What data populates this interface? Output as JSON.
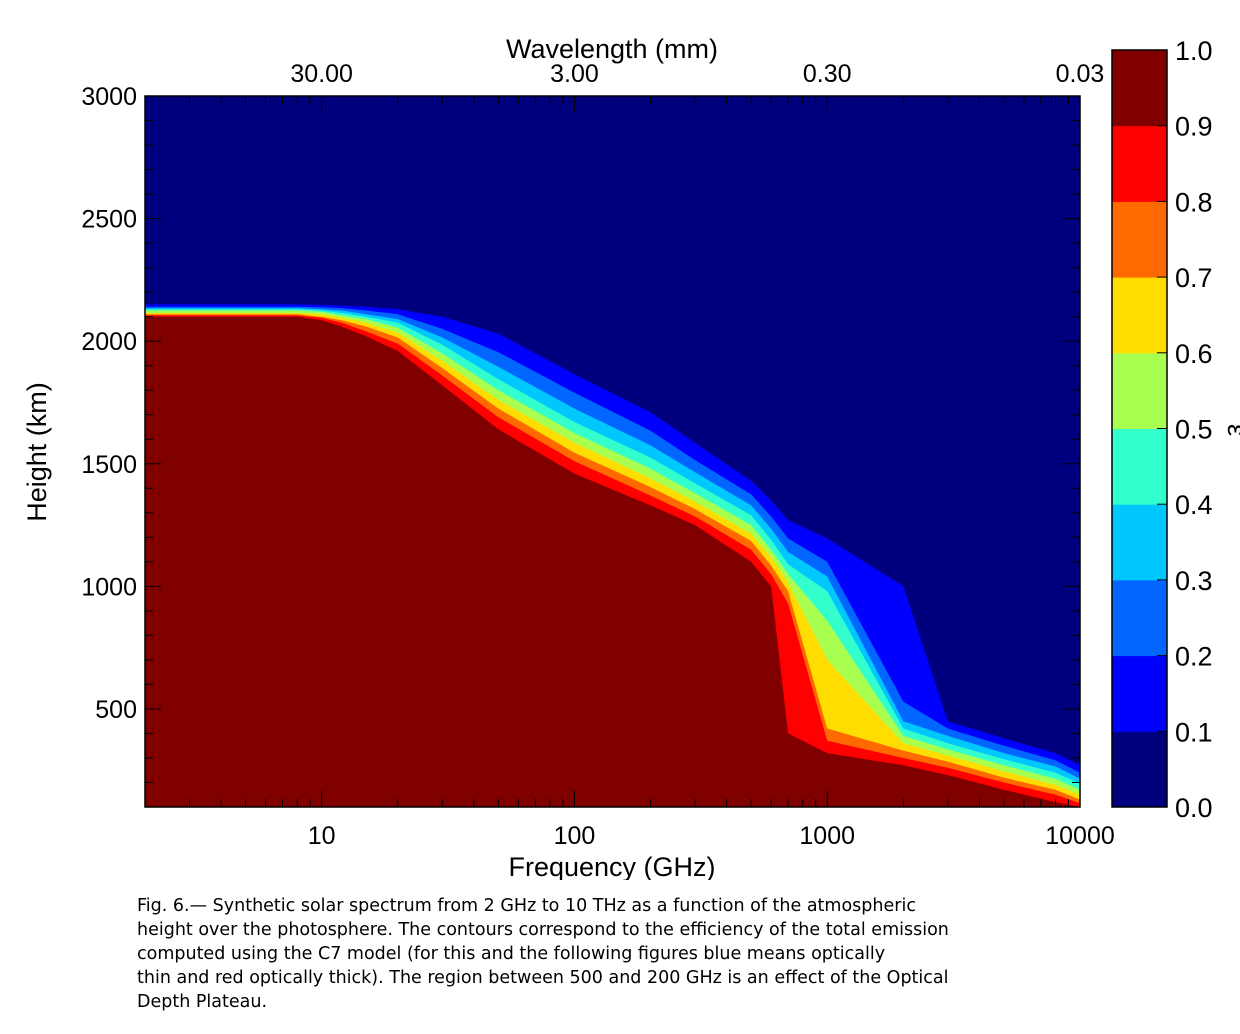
{
  "chart_data": {
    "type": "heatmap",
    "subtype": "filled-contour",
    "xlabel": "Frequency (GHz)",
    "x_scale": "log",
    "xlim": [
      2,
      10000
    ],
    "x_ticks": [
      10,
      100,
      1000,
      10000
    ],
    "x_tick_labels": [
      "10",
      "100",
      "1000",
      "10000"
    ],
    "x2label": "Wavelength (mm)",
    "x2_ticks_frequency_ghz": [
      10,
      100,
      1000,
      10000
    ],
    "x2_tick_labels": [
      "30.00",
      "3.00",
      "0.30",
      "0.03"
    ],
    "ylabel": "Height (km)",
    "ylim": [
      100,
      3000
    ],
    "y_ticks": [
      500,
      1000,
      1500,
      2000,
      2500,
      3000
    ],
    "y_tick_labels": [
      "500",
      "1000",
      "1500",
      "2000",
      "2500",
      "3000"
    ],
    "colorbar": {
      "label": "ε",
      "levels": [
        0.0,
        0.1,
        0.2,
        0.3,
        0.4,
        0.5,
        0.6,
        0.7,
        0.8,
        0.9,
        1.0
      ],
      "tick_labels": [
        "0.0",
        "0.1",
        "0.2",
        "0.3",
        "0.4",
        "0.5",
        "0.6",
        "0.7",
        "0.8",
        "0.9",
        "1.0"
      ],
      "colors": [
        "#00007F",
        "#0000FF",
        "#0066FF",
        "#00C8FF",
        "#33FFCC",
        "#A8FF4F",
        "#FFDD00",
        "#FF6A00",
        "#FF0000",
        "#800000"
      ]
    },
    "contour_levels": [
      0.9,
      0.8,
      0.7,
      0.6,
      0.5,
      0.4,
      0.3,
      0.2,
      0.1
    ],
    "contour_x": [
      2,
      5,
      8,
      10,
      12,
      15,
      20,
      30,
      50,
      100,
      200,
      300,
      500,
      600,
      700,
      1000,
      2000,
      3000,
      5000,
      8000,
      10000
    ],
    "contour_heights_km": [
      [
        2100,
        2100,
        2100,
        2085,
        2060,
        2020,
        1960,
        1820,
        1640,
        1460,
        1330,
        1250,
        1100,
        1000,
        400,
        320,
        270,
        230,
        170,
        120,
        100
      ],
      [
        2105,
        2105,
        2105,
        2095,
        2075,
        2040,
        1990,
        1860,
        1690,
        1510,
        1370,
        1285,
        1150,
        1050,
        930,
        370,
        300,
        260,
        200,
        150,
        115
      ],
      [
        2110,
        2110,
        2110,
        2100,
        2085,
        2060,
        2015,
        1890,
        1725,
        1545,
        1405,
        1315,
        1185,
        1085,
        980,
        420,
        330,
        285,
        220,
        170,
        130
      ],
      [
        2115,
        2115,
        2115,
        2110,
        2095,
        2075,
        2035,
        1920,
        1760,
        1585,
        1440,
        1345,
        1215,
        1120,
        1015,
        700,
        360,
        310,
        245,
        190,
        150
      ],
      [
        2125,
        2125,
        2125,
        2120,
        2105,
        2090,
        2055,
        1950,
        1800,
        1625,
        1480,
        1380,
        1250,
        1150,
        1050,
        860,
        390,
        335,
        270,
        215,
        170
      ],
      [
        2130,
        2130,
        2130,
        2125,
        2115,
        2100,
        2075,
        1985,
        1845,
        1670,
        1525,
        1420,
        1290,
        1190,
        1090,
        980,
        420,
        360,
        295,
        240,
        195
      ],
      [
        2135,
        2135,
        2135,
        2130,
        2125,
        2110,
        2090,
        2015,
        1895,
        1725,
        1575,
        1465,
        1330,
        1235,
        1140,
        1040,
        450,
        390,
        320,
        265,
        215
      ],
      [
        2140,
        2140,
        2140,
        2138,
        2135,
        2125,
        2110,
        2050,
        1955,
        1790,
        1635,
        1515,
        1375,
        1285,
        1195,
        1100,
        530,
        420,
        350,
        290,
        240
      ],
      [
        2150,
        2150,
        2150,
        2148,
        2145,
        2140,
        2130,
        2100,
        2030,
        1865,
        1710,
        1585,
        1430,
        1350,
        1270,
        1195,
        1000,
        450,
        380,
        320,
        270
      ]
    ]
  },
  "caption": {
    "lines": [
      "Fig. 6.— Synthetic solar spectrum from 2 GHz to 10 THz as a function of the atmospheric",
      "height over the photosphere. The contours correspond to the efficiency of the total emission",
      "computed using the C7 model (for this and the following figures blue means optically",
      "thin and red optically thick). The region between 500 and 200 GHz is an effect of the Optical",
      "Depth Plateau."
    ]
  }
}
